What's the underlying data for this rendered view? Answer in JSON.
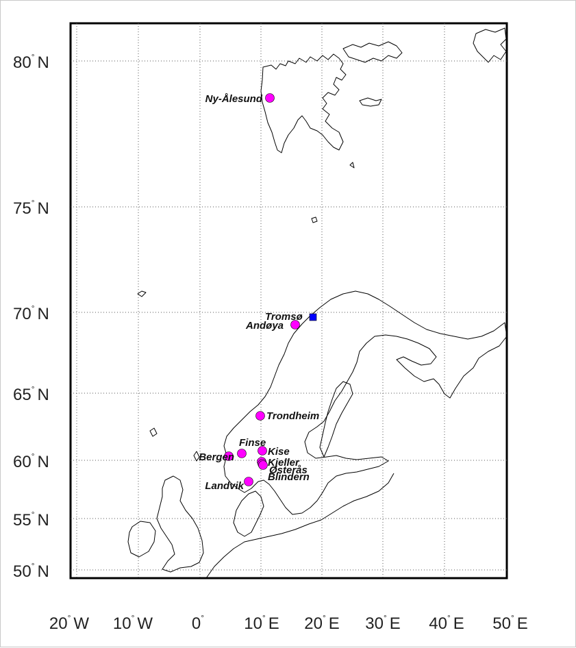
{
  "map": {
    "lat_ticks": [
      {
        "value": "80",
        "hemi": "N"
      },
      {
        "value": "75",
        "hemi": "N"
      },
      {
        "value": "70",
        "hemi": "N"
      },
      {
        "value": "65",
        "hemi": "N"
      },
      {
        "value": "60",
        "hemi": "N"
      },
      {
        "value": "55",
        "hemi": "N"
      },
      {
        "value": "50",
        "hemi": "N"
      }
    ],
    "lon_ticks": [
      {
        "value": "20",
        "hemi": "W"
      },
      {
        "value": "10",
        "hemi": "W"
      },
      {
        "value": "0",
        "hemi": ""
      },
      {
        "value": "10",
        "hemi": "E"
      },
      {
        "value": "20",
        "hemi": "E"
      },
      {
        "value": "30",
        "hemi": "E"
      },
      {
        "value": "40",
        "hemi": "E"
      },
      {
        "value": "50",
        "hemi": "E"
      }
    ],
    "stations": [
      {
        "name": "Ny-Ålesund",
        "marker": "circle",
        "color": "#ff00ff"
      },
      {
        "name": "Tromsø",
        "marker": "square",
        "color": "#0000ff",
        "label_color": "#0000ff"
      },
      {
        "name": "Andøya",
        "marker": "circle",
        "color": "#ff00ff"
      },
      {
        "name": "Trondheim",
        "marker": "circle",
        "color": "#ff00ff"
      },
      {
        "name": "Finse",
        "marker": "circle",
        "color": "#ff00ff"
      },
      {
        "name": "Kise",
        "marker": "circle",
        "color": "#ff00ff"
      },
      {
        "name": "Bergen",
        "marker": "circle",
        "color": "#ff00ff"
      },
      {
        "name": "Kjeller",
        "marker": "circle",
        "color": "#ff00ff"
      },
      {
        "name": "Østerås",
        "marker": "circle",
        "color": "#ff00ff"
      },
      {
        "name": "Blindern",
        "marker": "circle",
        "color": "#ff00ff"
      },
      {
        "name": "Landvik",
        "marker": "circle",
        "color": "#ff00ff"
      }
    ],
    "colors": {
      "station": "#ff00ff",
      "highlight": "#0000ff",
      "coastline": "#000000"
    }
  }
}
